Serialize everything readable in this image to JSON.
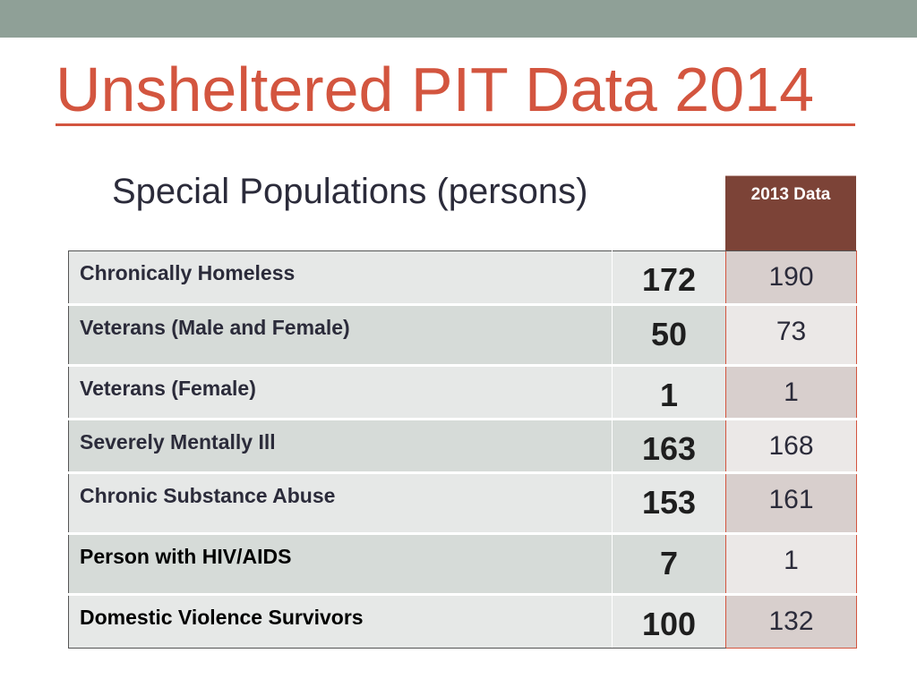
{
  "slide": {
    "title": "Unsheltered PIT Data 2014",
    "subtitle": "Special Populations (persons)",
    "prev_header": "2013 Data"
  },
  "colors": {
    "title": "#d3553f",
    "top_band": "#8fa097",
    "prev_header_bg": "#7c4337"
  },
  "rows": [
    {
      "label": "Chronically Homeless",
      "value": "172",
      "prev": "190"
    },
    {
      "label": "Veterans (Male and Female)",
      "value": "50",
      "prev": "73"
    },
    {
      "label": "Veterans (Female)",
      "value": "1",
      "prev": "1"
    },
    {
      "label": "Severely Mentally Ill",
      "value": "163",
      "prev": "168"
    },
    {
      "label": "Chronic Substance Abuse",
      "value": "153",
      "prev": "161"
    },
    {
      "label": "Person with HIV/AIDS",
      "value": "7",
      "prev": "1"
    },
    {
      "label": "Domestic Violence Survivors",
      "value": "100",
      "prev": "132"
    }
  ]
}
